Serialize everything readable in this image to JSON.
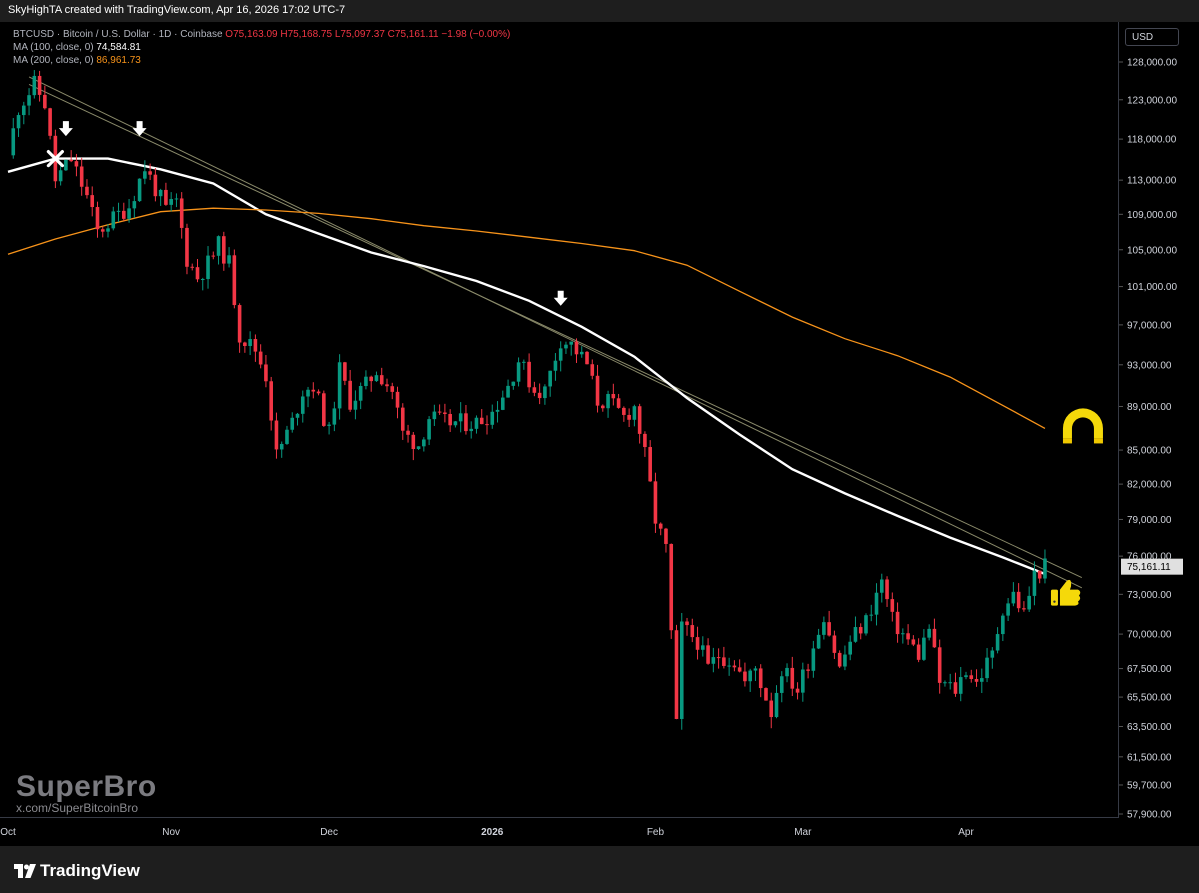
{
  "header": {
    "credit": "SkyHighTA created with TradingView.com, Apr 16, 2026 17:02 UTC-7"
  },
  "legend": {
    "line1_label": "BTCUSD · Bitcoin / U.S. Dollar · 1D · Coinbase",
    "line1_ohlc": "O75,163.09 H75,168.75 L75,097.37 C75,161.11 −1.98 (−0.00%)",
    "ma100_label": "MA (100, close, 0)",
    "ma100_value": "74,584.81",
    "ma200_label": "MA (200, close, 0)",
    "ma200_value": "86,961.73"
  },
  "currency_button": "USD",
  "watermark": {
    "title": "SuperBro",
    "subtitle": "x.com/SuperBitcoinBro"
  },
  "footer": {
    "brand": "TradingView"
  },
  "colors": {
    "up": "#089981",
    "down": "#f23645",
    "ma100": "#ffffff",
    "ma200": "#f7931a",
    "trendline": "#8a8a6a",
    "emoji": "#f5d90a"
  },
  "icons": [
    "magnet-icon",
    "thumbs-up-icon",
    "down-arrow-icon",
    "cross-icon"
  ],
  "chart_data": {
    "type": "candlestick",
    "symbol": "BTCUSD",
    "timeframe": "1D",
    "exchange": "Coinbase",
    "last_price": "75,161.11",
    "x_tick_labels": [
      {
        "label": "Oct",
        "date": "2025-10-01"
      },
      {
        "label": "Nov",
        "date": "2025-11-01"
      },
      {
        "label": "Dec",
        "date": "2025-12-01"
      },
      {
        "label": "2026",
        "date": "2026-01-01"
      },
      {
        "label": "Feb",
        "date": "2026-02-01"
      },
      {
        "label": "Mar",
        "date": "2026-03-01"
      },
      {
        "label": "Apr",
        "date": "2026-04-01"
      }
    ],
    "y_tick_labels": [
      {
        "label": "128,000.00",
        "value": 128000
      },
      {
        "label": "123,000.00",
        "value": 123000
      },
      {
        "label": "118,000.00",
        "value": 118000
      },
      {
        "label": "113,000.00",
        "value": 113000
      },
      {
        "label": "109,000.00",
        "value": 109000
      },
      {
        "label": "105,000.00",
        "value": 105000
      },
      {
        "label": "101,000.00",
        "value": 101000
      },
      {
        "label": "97,000.00",
        "value": 97000
      },
      {
        "label": "93,000.00",
        "value": 93000
      },
      {
        "label": "89,000.00",
        "value": 89000
      },
      {
        "label": "85,000.00",
        "value": 85000
      },
      {
        "label": "82,000.00",
        "value": 82000
      },
      {
        "label": "79,000.00",
        "value": 79000
      },
      {
        "label": "76,000.00",
        "value": 76000
      },
      {
        "label": "73,000.00",
        "value": 73000
      },
      {
        "label": "70,000.00",
        "value": 70000
      },
      {
        "label": "67,500.00",
        "value": 67500
      },
      {
        "label": "65,500.00",
        "value": 65500
      },
      {
        "label": "63,500.00",
        "value": 63500
      },
      {
        "label": "61,500.00",
        "value": 61500
      },
      {
        "label": "59,700.00",
        "value": 59700
      },
      {
        "label": "57,900.00",
        "value": 57900
      }
    ],
    "y_scale": "log",
    "grid": false,
    "close_path": [
      [
        "2025-10-01",
        116000
      ],
      [
        "2025-10-03",
        122000
      ],
      [
        "2025-10-06",
        125000
      ],
      [
        "2025-10-08",
        122500
      ],
      [
        "2025-10-10",
        113000
      ],
      [
        "2025-10-13",
        115500
      ],
      [
        "2025-10-16",
        111000
      ],
      [
        "2025-10-18",
        107000
      ],
      [
        "2025-10-21",
        108500
      ],
      [
        "2025-10-24",
        110000
      ],
      [
        "2025-10-27",
        114500
      ],
      [
        "2025-10-29",
        112000
      ],
      [
        "2025-10-31",
        109500
      ],
      [
        "2025-11-02",
        110500
      ],
      [
        "2025-11-04",
        104000
      ],
      [
        "2025-11-06",
        102000
      ],
      [
        "2025-11-08",
        103500
      ],
      [
        "2025-11-10",
        105500
      ],
      [
        "2025-11-12",
        103500
      ],
      [
        "2025-11-14",
        96000
      ],
      [
        "2025-11-17",
        94500
      ],
      [
        "2025-11-19",
        92000
      ],
      [
        "2025-11-21",
        84500
      ],
      [
        "2025-11-24",
        87500
      ],
      [
        "2025-11-26",
        90500
      ],
      [
        "2025-11-28",
        91000
      ],
      [
        "2025-12-01",
        86500
      ],
      [
        "2025-12-03",
        92500
      ],
      [
        "2025-12-05",
        89500
      ],
      [
        "2025-12-08",
        91000
      ],
      [
        "2025-12-10",
        92500
      ],
      [
        "2025-12-13",
        90500
      ],
      [
        "2025-12-15",
        86500
      ],
      [
        "2025-12-18",
        85500
      ],
      [
        "2025-12-20",
        88000
      ],
      [
        "2025-12-23",
        87500
      ],
      [
        "2025-12-26",
        87500
      ],
      [
        "2025-12-29",
        87500
      ],
      [
        "2026-01-01",
        88500
      ],
      [
        "2026-01-04",
        91000
      ],
      [
        "2026-01-06",
        93500
      ],
      [
        "2026-01-09",
        90500
      ],
      [
        "2026-01-11",
        90500
      ],
      [
        "2026-01-14",
        95500
      ],
      [
        "2026-01-16",
        95000
      ],
      [
        "2026-01-19",
        93000
      ],
      [
        "2026-01-21",
        89500
      ],
      [
        "2026-01-23",
        89500
      ],
      [
        "2026-01-26",
        88000
      ],
      [
        "2026-01-28",
        89000
      ],
      [
        "2026-01-30",
        84500
      ],
      [
        "2026-02-01",
        79000
      ],
      [
        "2026-02-03",
        76500
      ],
      [
        "2026-02-05",
        63500
      ],
      [
        "2026-02-06",
        70500
      ],
      [
        "2026-02-09",
        69500
      ],
      [
        "2026-02-11",
        67500
      ],
      [
        "2026-02-13",
        68500
      ],
      [
        "2026-02-16",
        68000
      ],
      [
        "2026-02-18",
        66500
      ],
      [
        "2026-02-20",
        67500
      ],
      [
        "2026-02-23",
        64500
      ],
      [
        "2026-02-25",
        67500
      ],
      [
        "2026-02-28",
        66000
      ],
      [
        "2026-03-02",
        68000
      ],
      [
        "2026-03-05",
        71500
      ],
      [
        "2026-03-08",
        67500
      ],
      [
        "2026-03-10",
        69500
      ],
      [
        "2026-03-13",
        71000
      ],
      [
        "2026-03-16",
        74000
      ],
      [
        "2026-03-18",
        71000
      ],
      [
        "2026-03-20",
        70000
      ],
      [
        "2026-03-23",
        68500
      ],
      [
        "2026-03-25",
        70500
      ],
      [
        "2026-03-27",
        66500
      ],
      [
        "2026-03-30",
        66000
      ],
      [
        "2026-04-01",
        67500
      ],
      [
        "2026-04-03",
        66500
      ],
      [
        "2026-04-06",
        68500
      ],
      [
        "2026-04-08",
        72000
      ],
      [
        "2026-04-10",
        73000
      ],
      [
        "2026-04-12",
        71500
      ],
      [
        "2026-04-14",
        74500
      ],
      [
        "2026-04-16",
        75161
      ]
    ],
    "series": [
      {
        "name": "MA (100, close, 0)",
        "color": "#ffffff",
        "points": [
          [
            "2025-10-01",
            114000
          ],
          [
            "2025-10-10",
            115600
          ],
          [
            "2025-10-20",
            115600
          ],
          [
            "2025-10-30",
            114300
          ],
          [
            "2025-11-09",
            112600
          ],
          [
            "2025-11-19",
            109000
          ],
          [
            "2025-11-29",
            106800
          ],
          [
            "2025-12-09",
            104700
          ],
          [
            "2025-12-19",
            103200
          ],
          [
            "2025-12-29",
            101600
          ],
          [
            "2026-01-08",
            99500
          ],
          [
            "2026-01-18",
            96800
          ],
          [
            "2026-01-28",
            93800
          ],
          [
            "2026-02-07",
            89800
          ],
          [
            "2026-02-17",
            86400
          ],
          [
            "2026-02-27",
            83300
          ],
          [
            "2026-03-09",
            81200
          ],
          [
            "2026-03-19",
            79300
          ],
          [
            "2026-03-29",
            77500
          ],
          [
            "2026-04-08",
            75900
          ],
          [
            "2026-04-16",
            74585
          ]
        ]
      },
      {
        "name": "MA (200, close, 0)",
        "color": "#f7931a",
        "points": [
          [
            "2025-10-01",
            104500
          ],
          [
            "2025-10-10",
            106200
          ],
          [
            "2025-10-20",
            107800
          ],
          [
            "2025-10-30",
            109300
          ],
          [
            "2025-11-09",
            109700
          ],
          [
            "2025-11-19",
            109500
          ],
          [
            "2025-11-29",
            109100
          ],
          [
            "2025-12-09",
            108500
          ],
          [
            "2025-12-19",
            107700
          ],
          [
            "2025-12-29",
            107100
          ],
          [
            "2026-01-08",
            106400
          ],
          [
            "2026-01-18",
            105700
          ],
          [
            "2026-01-28",
            104900
          ],
          [
            "2026-02-07",
            103300
          ],
          [
            "2026-02-17",
            100500
          ],
          [
            "2026-02-27",
            97800
          ],
          [
            "2026-03-09",
            95600
          ],
          [
            "2026-03-19",
            93900
          ],
          [
            "2026-03-29",
            91800
          ],
          [
            "2026-04-08",
            89100
          ],
          [
            "2026-04-16",
            86962
          ]
        ]
      }
    ],
    "trendlines": [
      {
        "from": [
          "2025-10-05",
          126000
        ],
        "to": [
          "2026-04-23",
          73500
        ]
      },
      {
        "from": [
          "2025-10-05",
          125000
        ],
        "to": [
          "2026-04-23",
          74300
        ]
      }
    ],
    "markers": [
      {
        "type": "cross",
        "date": "2025-10-10",
        "value": 115600
      },
      {
        "type": "down-arrow",
        "date": "2025-10-12",
        "value": 119000
      },
      {
        "type": "down-arrow",
        "date": "2025-10-26",
        "value": 119000
      },
      {
        "type": "down-arrow",
        "date": "2026-01-14",
        "value": 99500
      }
    ]
  }
}
